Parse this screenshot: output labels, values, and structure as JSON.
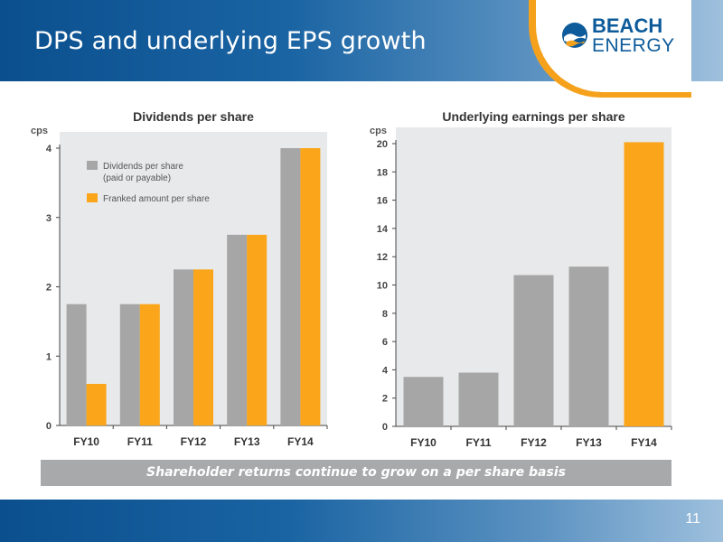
{
  "slide": {
    "title": "DPS and underlying EPS growth",
    "page_number": "11",
    "banner": "Shareholder returns continue to grow on a per share basis"
  },
  "logo": {
    "line1": "BEACH",
    "line2": "ENERGY",
    "text": "BEACH ENERGY"
  },
  "colors": {
    "header_dark": "#0b4f8e",
    "header_light": "#9ec0dd",
    "logo_blue": "#0d5b9a",
    "accent_orange": "#f5a11c",
    "bar_grey": "#a6a6a6",
    "bar_orange": "#faa51a",
    "banner_grey": "#a8a9aa"
  },
  "chart_data": [
    {
      "type": "bar",
      "title": "Dividends per share",
      "ylabel": "cps",
      "categories": [
        "FY10",
        "FY11",
        "FY12",
        "FY13",
        "FY14"
      ],
      "ylim": [
        0,
        4
      ],
      "yticks": [
        0,
        1,
        2,
        3,
        4
      ],
      "legend": "top-left",
      "grid": false,
      "series": [
        {
          "name": "Dividends per share (paid or payable)",
          "legend_lines": [
            "Dividends per share",
            "(paid or payable)"
          ],
          "color": "#a6a6a6",
          "values": [
            1.75,
            1.75,
            2.25,
            2.75,
            4.0
          ]
        },
        {
          "name": "Franked amount per share",
          "legend_lines": [
            "Franked amount per share"
          ],
          "color": "#faa51a",
          "values": [
            0.6,
            1.75,
            2.25,
            2.75,
            4.0
          ]
        }
      ]
    },
    {
      "type": "bar",
      "title": "Underlying earnings per share",
      "ylabel": "cps",
      "categories": [
        "FY10",
        "FY11",
        "FY12",
        "FY13",
        "FY14"
      ],
      "ylim": [
        0,
        20
      ],
      "yticks": [
        0,
        2,
        4,
        6,
        8,
        10,
        12,
        14,
        16,
        18,
        20
      ],
      "grid": false,
      "values": [
        3.5,
        3.8,
        10.7,
        11.3,
        20.1
      ],
      "colors": [
        "#a6a6a6",
        "#a6a6a6",
        "#a6a6a6",
        "#a6a6a6",
        "#faa51a"
      ]
    }
  ]
}
